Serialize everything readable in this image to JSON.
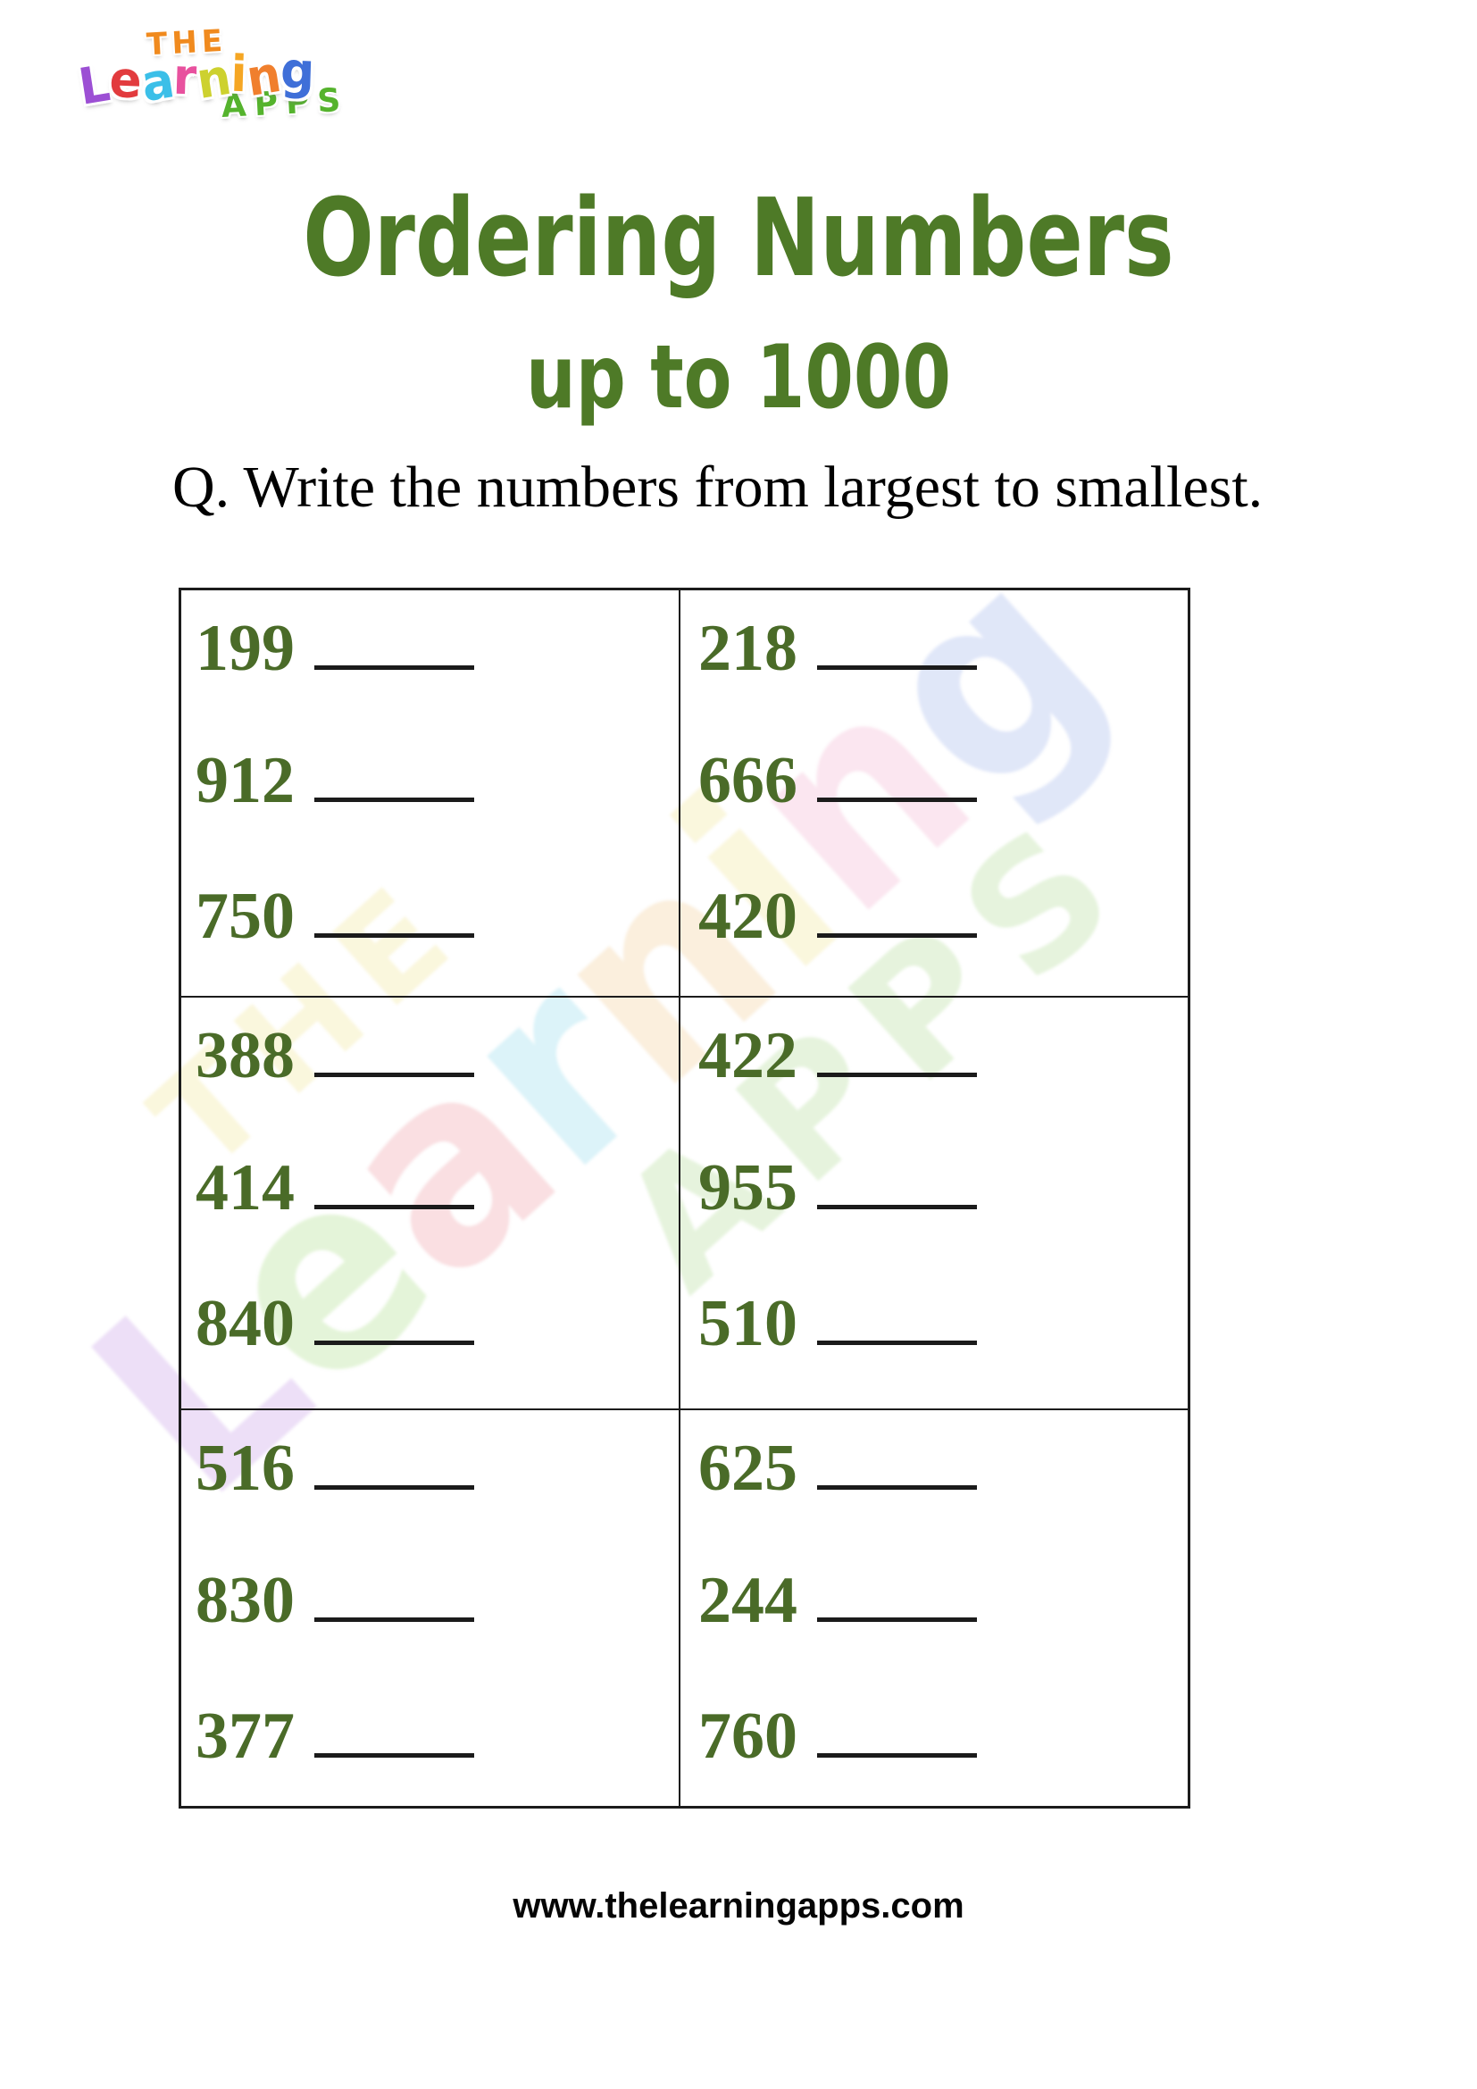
{
  "logo": {
    "the": "THE",
    "the_color": "#f08a1e",
    "learning_letters": [
      {
        "ch": "L",
        "color": "#9c4fd4"
      },
      {
        "ch": "e",
        "color": "#e23b3e"
      },
      {
        "ch": "a",
        "color": "#3bbfe8"
      },
      {
        "ch": "r",
        "color": "#e8519e"
      },
      {
        "ch": "n",
        "color": "#cdd12f"
      },
      {
        "ch": "i",
        "color": "#f5a623"
      },
      {
        "ch": "n",
        "color": "#f07f2d"
      },
      {
        "ch": "g",
        "color": "#3f6fd8"
      }
    ],
    "apps": "APPS",
    "apps_color": "#55b32d"
  },
  "title": {
    "line1": "Ordering Numbers",
    "line2": "up to 1000",
    "color": "#4e7a27"
  },
  "question": {
    "text": "Q. Write the numbers from largest to smallest."
  },
  "worksheet": {
    "number_color": "#4a6b28",
    "cells": [
      {
        "numbers": [
          "199",
          "912",
          "750"
        ]
      },
      {
        "numbers": [
          "218",
          "666",
          "420"
        ]
      },
      {
        "numbers": [
          "388",
          "414",
          "840"
        ]
      },
      {
        "numbers": [
          "422",
          "955",
          "510"
        ]
      },
      {
        "numbers": [
          "516",
          "830",
          "377"
        ]
      },
      {
        "numbers": [
          "625",
          "244",
          "760"
        ]
      }
    ]
  },
  "footer": {
    "url": "www.thelearningapps.com"
  }
}
